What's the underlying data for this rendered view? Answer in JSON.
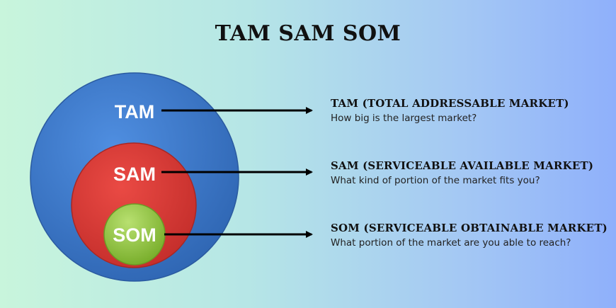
{
  "title": "TAM SAM SOM",
  "colors": {
    "tam": "#3d7ac9",
    "sam": "#d63a36",
    "som": "#8cc13f",
    "arrow": "#000000"
  },
  "circles": [
    {
      "label": "TAM"
    },
    {
      "label": "SAM"
    },
    {
      "label": "SOM"
    }
  ],
  "descriptions": [
    {
      "heading": "TAM (TOTAL ADDRESSABLE MARKET)",
      "question": "How big is the largest market?"
    },
    {
      "heading": "SAM (SERVICEABLE AVAILABLE MARKET)",
      "question": "What kind of portion of the market fits you?"
    },
    {
      "heading": "SOM (SERVICEABLE OBTAINABLE MARKET)",
      "question": "What portion of the market are you able to reach?"
    }
  ]
}
